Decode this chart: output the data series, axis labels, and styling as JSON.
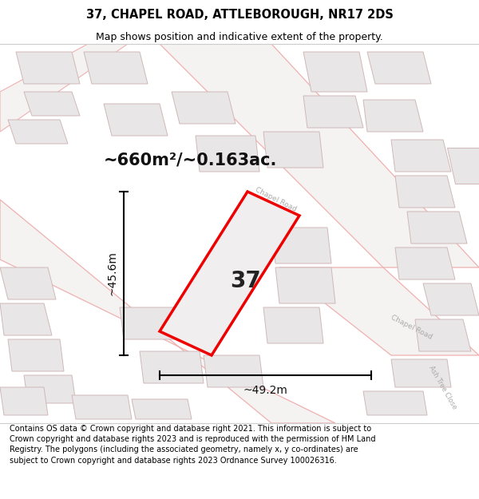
{
  "title_line1": "37, CHAPEL ROAD, ATTLEBOROUGH, NR17 2DS",
  "title_line2": "Map shows position and indicative extent of the property.",
  "footer_text": "Contains OS data © Crown copyright and database right 2021. This information is subject to Crown copyright and database rights 2023 and is reproduced with the permission of HM Land Registry. The polygons (including the associated geometry, namely x, y co-ordinates) are subject to Crown copyright and database rights 2023 Ordnance Survey 100026316.",
  "area_label": "~660m²/~0.163ac.",
  "number_label": "37",
  "width_label": "~49.2m",
  "height_label": "~45.6m",
  "bg_color": "#ffffff",
  "map_bg": "#f8f6f6",
  "road_line_color": "#f0b0b0",
  "building_fill": "#e8e6e6",
  "building_edge": "#d0c0c0",
  "plot_edge": "#ee0000",
  "plot_fill": "#f0eeee",
  "label_color": "#aaaaaa",
  "title_fontsize": 10.5,
  "subtitle_fontsize": 9.0,
  "footer_fontsize": 7.0,
  "area_fontsize": 15,
  "number_fontsize": 20,
  "dim_fontsize": 10
}
